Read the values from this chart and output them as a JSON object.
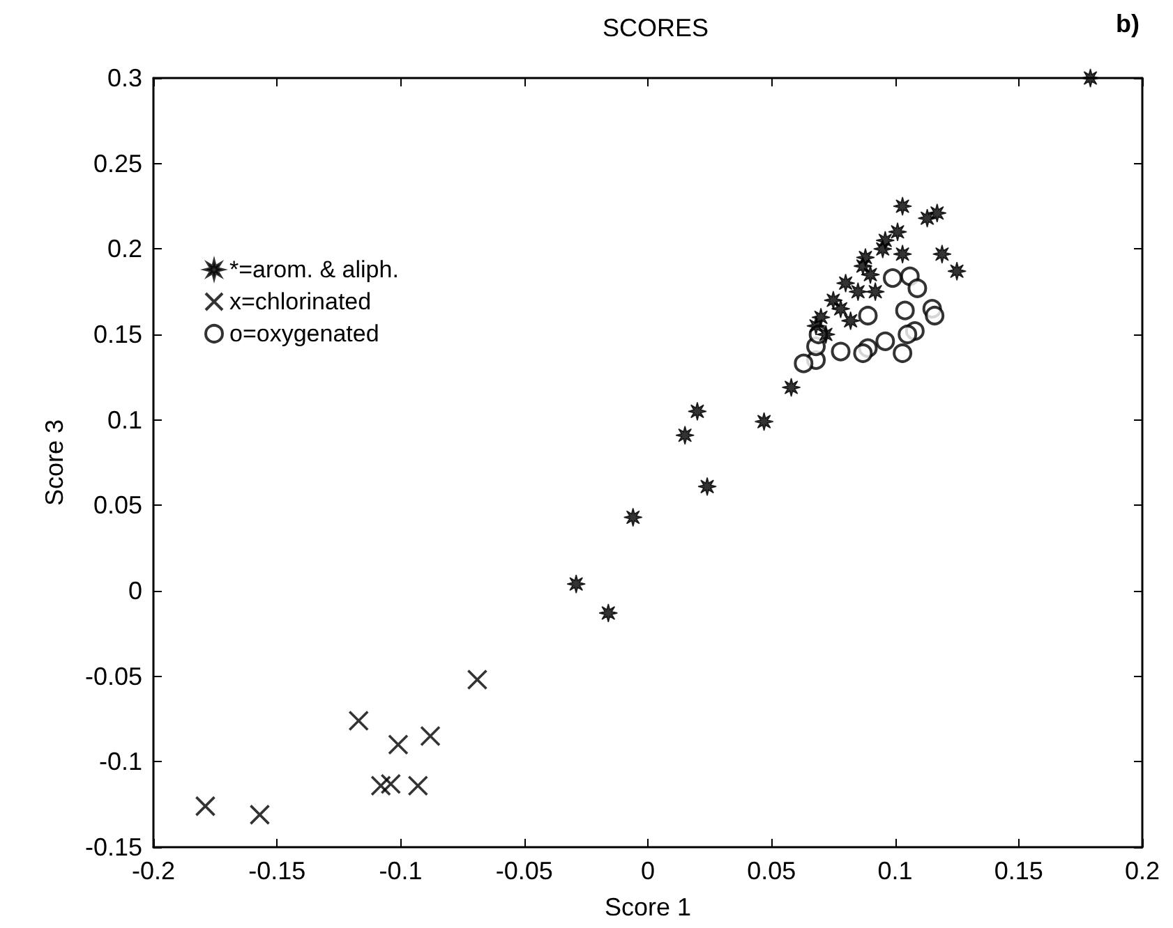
{
  "chart_data": {
    "type": "scatter",
    "title": "SCORES",
    "xlabel": "Score 1",
    "ylabel": "Score 3",
    "annotations": [
      "b)"
    ],
    "xlim": [
      -0.2,
      0.2
    ],
    "xticks": [
      -0.2,
      -0.15,
      -0.1,
      -0.05,
      0,
      0.05,
      0.1,
      0.15,
      0.2
    ],
    "ylim": [
      -0.15,
      0.3
    ],
    "yticks": [
      -0.15,
      -0.1,
      -0.05,
      0,
      0.05,
      0.1,
      0.15,
      0.2,
      0.25,
      0.3
    ],
    "grid": false,
    "legend": "top left",
    "series": [
      {
        "name": "*=arom. & aliph.",
        "color": "#000000",
        "marker": "star",
        "x": [
          0.179,
          0.103,
          0.113,
          0.117,
          0.101,
          0.119,
          0.125,
          0.103,
          0.096,
          0.087,
          0.08,
          0.085,
          0.075,
          0.07,
          0.09,
          0.092,
          0.078,
          0.082,
          0.068,
          0.072,
          0.095,
          0.088,
          0.058,
          0.047,
          0.02,
          0.015,
          0.024,
          -0.006,
          -0.029,
          -0.016
        ],
        "values": [
          0.3,
          0.225,
          0.218,
          0.221,
          0.21,
          0.197,
          0.187,
          0.197,
          0.205,
          0.19,
          0.18,
          0.175,
          0.17,
          0.16,
          0.185,
          0.175,
          0.165,
          0.158,
          0.155,
          0.15,
          0.2,
          0.195,
          0.119,
          0.099,
          0.105,
          0.091,
          0.061,
          0.043,
          0.004,
          -0.013
        ]
      },
      {
        "name": "x=chlorinated",
        "color": "#000000",
        "marker": "cross",
        "x": [
          -0.179,
          -0.157,
          -0.117,
          -0.101,
          -0.088,
          -0.108,
          -0.104,
          -0.093,
          -0.069
        ],
        "values": [
          -0.126,
          -0.131,
          -0.076,
          -0.09,
          -0.085,
          -0.114,
          -0.113,
          -0.114,
          -0.052
        ]
      },
      {
        "name": "o=oxygenated",
        "color": "#000000",
        "marker": "circle",
        "x": [
          0.106,
          0.109,
          0.104,
          0.115,
          0.116,
          0.108,
          0.105,
          0.103,
          0.096,
          0.089,
          0.087,
          0.078,
          0.068,
          0.068,
          0.063,
          0.099,
          0.089,
          0.069
        ],
        "values": [
          0.184,
          0.177,
          0.164,
          0.165,
          0.161,
          0.152,
          0.15,
          0.139,
          0.146,
          0.142,
          0.139,
          0.14,
          0.135,
          0.143,
          0.133,
          0.183,
          0.161,
          0.15
        ]
      }
    ]
  }
}
